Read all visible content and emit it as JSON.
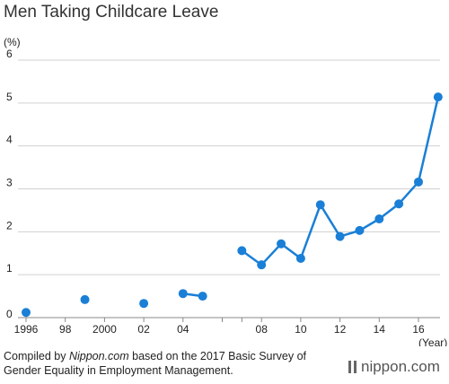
{
  "title": "Men Taking Childcare Leave",
  "footer": {
    "prefix": "Compiled by ",
    "source": "Nippon.com",
    "suffix": " based on the 2017 Basic Survey of Gender Equality in Employment Management."
  },
  "brand": "nippon.com",
  "colors": {
    "series": "#1a7fd6",
    "grid": "#d0d0d0",
    "axis": "#888888"
  },
  "chart_data": {
    "type": "line",
    "title": "Men Taking Childcare Leave",
    "ylabel": "(%)",
    "xlabel": "(Year)",
    "ylim": [
      0,
      6
    ],
    "xlim": [
      1996,
      2017
    ],
    "yticks": [
      "0",
      "1",
      "2",
      "3",
      "4",
      "5",
      "6"
    ],
    "xticks": [
      {
        "x": 1996,
        "label": "1996"
      },
      {
        "x": 1998,
        "label": "98"
      },
      {
        "x": 2000,
        "label": "2000"
      },
      {
        "x": 2002,
        "label": "02"
      },
      {
        "x": 2004,
        "label": "04"
      },
      {
        "x": 2006,
        "label": ""
      },
      {
        "x": 2007,
        "label": ""
      },
      {
        "x": 2008,
        "label": "08"
      },
      {
        "x": 2010,
        "label": "10"
      },
      {
        "x": 2012,
        "label": "12"
      },
      {
        "x": 2014,
        "label": "14"
      },
      {
        "x": 2016,
        "label": "16"
      }
    ],
    "grid": true,
    "series": [
      {
        "points": [
          {
            "x": 1996,
            "y": 0.12
          },
          {
            "x": 1999,
            "y": 0.42
          },
          {
            "x": 2002,
            "y": 0.33
          },
          {
            "x": 2004,
            "y": 0.56
          },
          {
            "x": 2005,
            "y": 0.5
          },
          {
            "x": 2007,
            "y": 1.56
          },
          {
            "x": 2008,
            "y": 1.23
          },
          {
            "x": 2009,
            "y": 1.72
          },
          {
            "x": 2010,
            "y": 1.38
          },
          {
            "x": 2011,
            "y": 2.63
          },
          {
            "x": 2012,
            "y": 1.89
          },
          {
            "x": 2013,
            "y": 2.03
          },
          {
            "x": 2014,
            "y": 2.3
          },
          {
            "x": 2015,
            "y": 2.65
          },
          {
            "x": 2016,
            "y": 3.16
          },
          {
            "x": 2017,
            "y": 5.14
          }
        ],
        "segments": [
          [
            2004,
            2005
          ],
          [
            2007,
            2017
          ]
        ]
      }
    ]
  }
}
